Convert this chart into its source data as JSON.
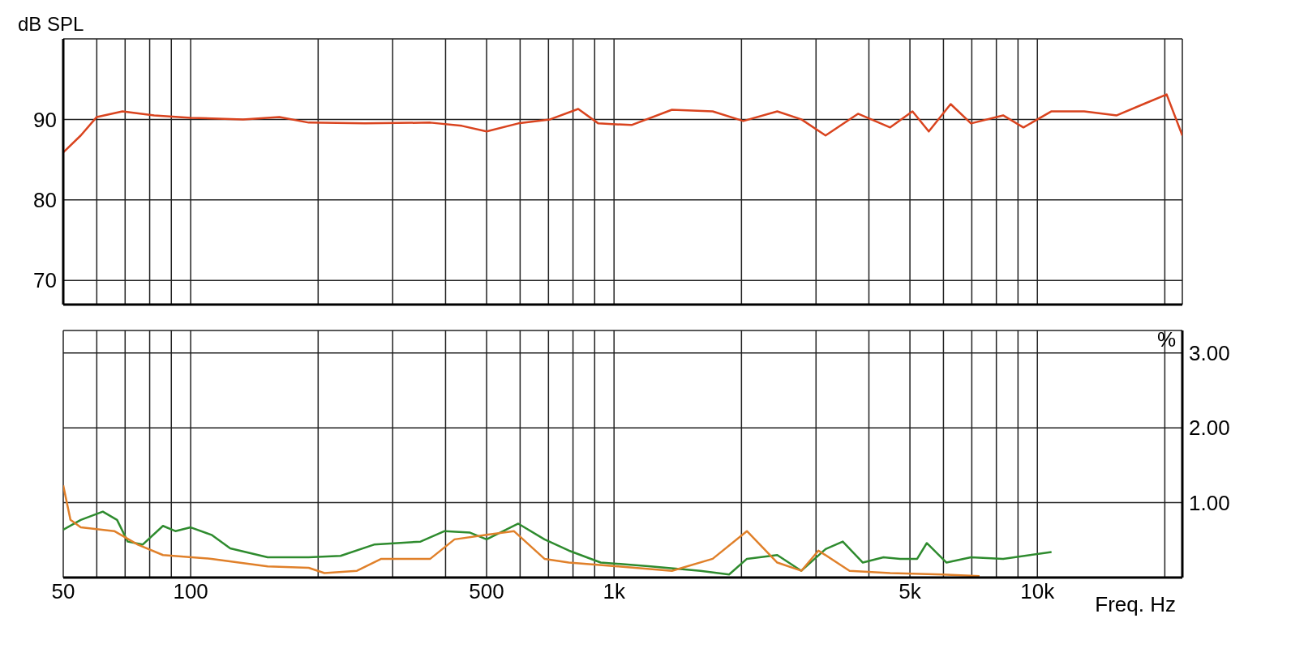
{
  "chart_data": [
    {
      "type": "line",
      "ylabel": "dB SPL",
      "tick_labels": "y",
      "grid": true,
      "marker": "none",
      "line_style": "solid",
      "xlim": [
        50,
        22000
      ],
      "log": "x",
      "xticks": [
        {
          "value": 50,
          "label": null
        },
        {
          "value": 60,
          "label": null
        },
        {
          "value": 70,
          "label": null
        },
        {
          "value": 80,
          "label": null
        },
        {
          "value": 90,
          "label": null
        },
        {
          "value": 100,
          "label": null
        },
        {
          "value": 200,
          "label": null
        },
        {
          "value": 300,
          "label": null
        },
        {
          "value": 400,
          "label": null
        },
        {
          "value": 500,
          "label": null
        },
        {
          "value": 600,
          "label": null
        },
        {
          "value": 700,
          "label": null
        },
        {
          "value": 800,
          "label": null
        },
        {
          "value": 900,
          "label": null
        },
        {
          "value": 1000,
          "label": null
        },
        {
          "value": 2000,
          "label": null
        },
        {
          "value": 3000,
          "label": null
        },
        {
          "value": 4000,
          "label": null
        },
        {
          "value": 5000,
          "label": null
        },
        {
          "value": 6000,
          "label": null
        },
        {
          "value": 7000,
          "label": null
        },
        {
          "value": 8000,
          "label": null
        },
        {
          "value": 9000,
          "label": null
        },
        {
          "value": 10000,
          "label": null
        },
        {
          "value": 20000,
          "label": null
        }
      ],
      "ylim": [
        67,
        100
      ],
      "yticks": [
        70,
        80,
        90
      ],
      "series": [
        {
          "color": "#d9431e",
          "x": [
            50,
            55,
            60,
            69,
            82,
            100,
            133,
            162,
            190,
            258,
            368,
            437,
            500,
            594,
            706,
            823,
            918,
            1100,
            1370,
            1710,
            2020,
            2430,
            2770,
            3160,
            3770,
            4490,
            5070,
            5540,
            6240,
            6970,
            8300,
            9270,
            10800,
            12900,
            15400,
            18000,
            20200,
            22000
          ],
          "values": [
            85.9,
            88,
            90.3,
            91,
            90.5,
            90.2,
            90,
            90.3,
            89.6,
            89.5,
            89.6,
            89.2,
            88.5,
            89.5,
            90,
            91.3,
            89.5,
            89.3,
            91.2,
            91,
            89.8,
            91,
            90,
            88,
            90.7,
            89,
            91,
            88.5,
            91.9,
            89.5,
            90.5,
            89,
            91,
            91,
            90.5,
            92,
            93.1,
            88
          ]
        }
      ]
    },
    {
      "type": "line",
      "xlabel": "Freq. Hz",
      "y2label": "%",
      "grid": true,
      "marker": "none",
      "line_style": "solid",
      "xlim": [
        50,
        22000
      ],
      "log": "x",
      "xticks": [
        50,
        {
          "value": 60,
          "label": null
        },
        {
          "value": 70,
          "label": null
        },
        {
          "value": 80,
          "label": null
        },
        {
          "value": 90,
          "label": null
        },
        100,
        {
          "value": 200,
          "label": null
        },
        {
          "value": 300,
          "label": null
        },
        {
          "value": 400,
          "label": null
        },
        500,
        {
          "value": 600,
          "label": null
        },
        {
          "value": 700,
          "label": null
        },
        {
          "value": 800,
          "label": null
        },
        {
          "value": 900,
          "label": null
        },
        {
          "value": 1000,
          "label": "1k"
        },
        {
          "value": 2000,
          "label": null
        },
        {
          "value": 3000,
          "label": null
        },
        {
          "value": 4000,
          "label": null
        },
        {
          "value": 5000,
          "label": "5k"
        },
        {
          "value": 6000,
          "label": null
        },
        {
          "value": 7000,
          "label": null
        },
        {
          "value": 8000,
          "label": null
        },
        {
          "value": 9000,
          "label": null
        },
        {
          "value": 10000,
          "label": "10k"
        },
        {
          "value": 20000,
          "label": null
        }
      ],
      "y2lim": [
        0,
        3.3
      ],
      "y2ticks": [
        {
          "value": 1,
          "label": "1.00"
        },
        {
          "value": 2,
          "label": "2.00"
        },
        {
          "value": 3,
          "label": "3.00"
        }
      ],
      "series": [
        {
          "axis": "y2",
          "color": "#2e8b2e",
          "x": [
            50,
            55,
            62,
            67,
            71,
            77,
            86,
            92,
            100,
            112,
            124,
            152,
            190,
            226,
            271,
            349,
            398,
            457,
            500,
            594,
            685,
            782,
            930,
            1220,
            1600,
            1870,
            2060,
            2430,
            2770,
            3160,
            3470,
            3870,
            4330,
            4740,
            5200,
            5480,
            6100,
            6970,
            8300,
            10800
          ],
          "values": [
            0.64,
            0.77,
            0.88,
            0.77,
            0.48,
            0.44,
            0.69,
            0.62,
            0.67,
            0.57,
            0.39,
            0.27,
            0.27,
            0.29,
            0.44,
            0.48,
            0.62,
            0.6,
            0.51,
            0.72,
            0.51,
            0.36,
            0.2,
            0.15,
            0.09,
            0.04,
            0.25,
            0.3,
            0.09,
            0.38,
            0.48,
            0.2,
            0.27,
            0.25,
            0.25,
            0.46,
            0.2,
            0.27,
            0.25,
            0.34
          ]
        },
        {
          "axis": "y2",
          "color": "#e0802a",
          "x": [
            50,
            52,
            55,
            66,
            75,
            86,
            112,
            152,
            190,
            207,
            247,
            282,
            368,
            420,
            500,
            580,
            685,
            782,
            1020,
            1370,
            1710,
            2060,
            2430,
            2770,
            3040,
            3600,
            4490,
            5960,
            7300
          ],
          "values": [
            1.23,
            0.77,
            0.67,
            0.62,
            0.44,
            0.3,
            0.25,
            0.15,
            0.13,
            0.06,
            0.09,
            0.25,
            0.25,
            0.51,
            0.57,
            0.62,
            0.25,
            0.2,
            0.15,
            0.09,
            0.25,
            0.62,
            0.2,
            0.09,
            0.36,
            0.09,
            0.06,
            0.04,
            0.02
          ]
        }
      ]
    }
  ]
}
